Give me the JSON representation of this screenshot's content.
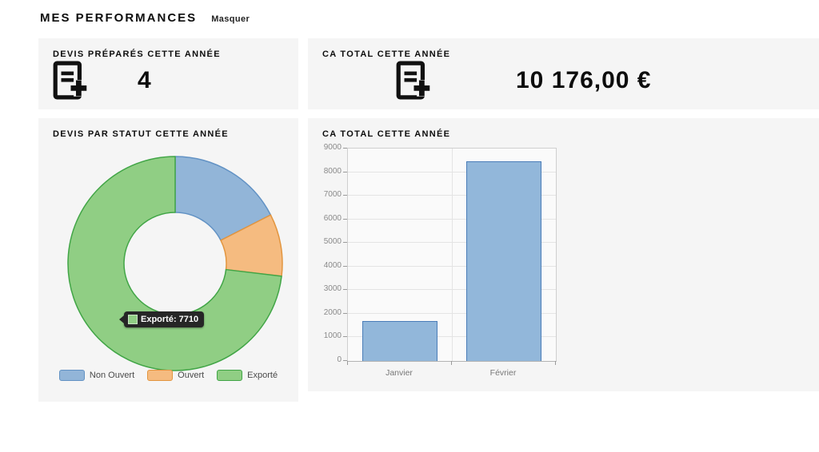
{
  "page": {
    "title": "MES PERFORMANCES",
    "toggle_label": "Masquer"
  },
  "stat_cards": [
    {
      "title": "DEVIS PRÉPARÉS CETTE ANNÉE",
      "icon": "document-plus-icon",
      "value": "4"
    },
    {
      "title": "CA TOTAL CETTE ANNÉE",
      "icon": "document-plus-icon",
      "value": "10 176,00 €"
    }
  ],
  "chart_data": [
    {
      "type": "pie",
      "donut": true,
      "title": "DEVIS PAR STATUT CETTE ANNÉE",
      "labels": [
        "Non Ouvert",
        "Ouvert",
        "Exporté"
      ],
      "values": [
        1845,
        990,
        7710
      ],
      "colors": [
        {
          "fill": "#92b5d8",
          "border": "#6292c4"
        },
        {
          "fill": "#f5bb80",
          "border": "#e2953f"
        },
        {
          "fill": "#90ce84",
          "border": "#41a546"
        }
      ],
      "legend_position": "bottom",
      "start_angle_deg": 0,
      "tooltip": {
        "label": "Exporté",
        "value": "7710",
        "text": "Exporté: 7710"
      }
    },
    {
      "type": "bar",
      "title": "CA TOTAL CETTE ANNÉE",
      "categories": [
        "Janvier",
        "Février"
      ],
      "values": [
        1700,
        8476
      ],
      "xlabel": "",
      "ylabel": "",
      "ylim": [
        0,
        9000
      ],
      "y_ticks": [
        0,
        1000,
        2000,
        3000,
        4000,
        5000,
        6000,
        7000,
        8000,
        9000
      ],
      "grid": true,
      "bar_fill": "#92b7da",
      "bar_border": "#4a7db8"
    }
  ]
}
